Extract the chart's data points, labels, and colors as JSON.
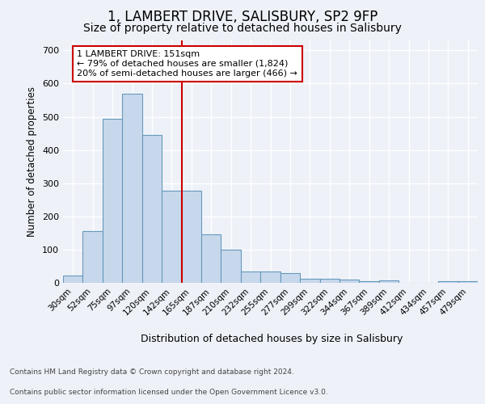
{
  "title1": "1, LAMBERT DRIVE, SALISBURY, SP2 9FP",
  "title2": "Size of property relative to detached houses in Salisbury",
  "xlabel": "Distribution of detached houses by size in Salisbury",
  "ylabel": "Number of detached properties",
  "categories": [
    "30sqm",
    "52sqm",
    "75sqm",
    "97sqm",
    "120sqm",
    "142sqm",
    "165sqm",
    "187sqm",
    "210sqm",
    "232sqm",
    "255sqm",
    "277sqm",
    "299sqm",
    "322sqm",
    "344sqm",
    "367sqm",
    "389sqm",
    "412sqm",
    "434sqm",
    "457sqm",
    "479sqm"
  ],
  "values": [
    22,
    155,
    495,
    570,
    445,
    277,
    277,
    145,
    99,
    35,
    33,
    30,
    13,
    13,
    10,
    5,
    7,
    0,
    0,
    5,
    5
  ],
  "bar_color": "#c8d8ec",
  "bar_edge_color": "#6699bb",
  "red_line_x": 5.5,
  "annotation_text": "1 LAMBERT DRIVE: 151sqm\n← 79% of detached houses are smaller (1,824)\n20% of semi-detached houses are larger (466) →",
  "annotation_box_color": "#ffffff",
  "annotation_box_edge": "#cc0000",
  "red_line_color": "#cc0000",
  "yticks": [
    0,
    100,
    200,
    300,
    400,
    500,
    600,
    700
  ],
  "ylim": [
    0,
    730
  ],
  "footer1": "Contains HM Land Registry data © Crown copyright and database right 2024.",
  "footer2": "Contains public sector information licensed under the Open Government Licence v3.0.",
  "background_color": "#eef2f8",
  "plot_background": "#eef2f8",
  "title1_fontsize": 12,
  "title2_fontsize": 10
}
